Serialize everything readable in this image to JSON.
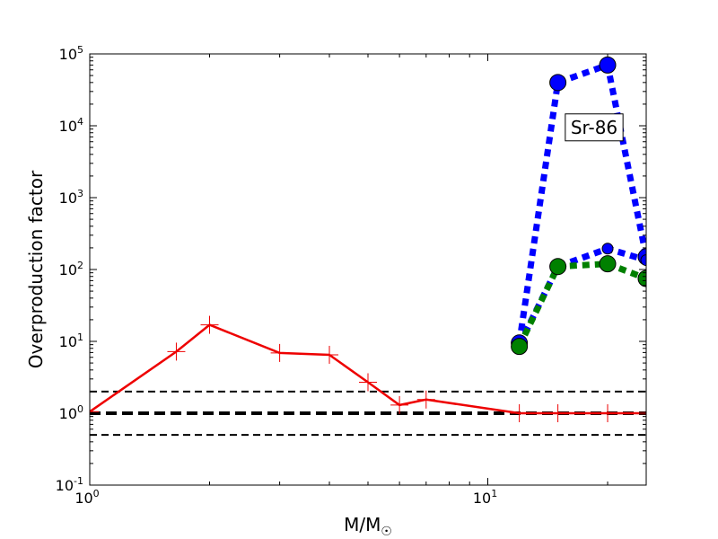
{
  "chart_data": {
    "type": "line",
    "xscale": "log",
    "yscale": "log",
    "xlim": [
      1,
      25
    ],
    "ylim": [
      0.1,
      100000
    ],
    "xlabel": "M/M☉",
    "ylabel": "Overproduction factor",
    "x_ticks": [
      {
        "value": 1,
        "base": "10",
        "exp": "0"
      },
      {
        "value": 10,
        "base": "10",
        "exp": "1"
      }
    ],
    "y_ticks": [
      {
        "value": 0.1,
        "base": "10",
        "exp": "-1"
      },
      {
        "value": 1,
        "base": "10",
        "exp": "0"
      },
      {
        "value": 10,
        "base": "10",
        "exp": "1"
      },
      {
        "value": 100,
        "base": "10",
        "exp": "2"
      },
      {
        "value": 1000,
        "base": "10",
        "exp": "3"
      },
      {
        "value": 10000,
        "base": "10",
        "exp": "4"
      },
      {
        "value": 100000,
        "base": "10",
        "exp": "5"
      }
    ],
    "reference_lines": [
      {
        "y": 2.0,
        "style": "dashed",
        "weight": "thin",
        "color": "#000000"
      },
      {
        "y": 1.0,
        "style": "dashed",
        "weight": "thick",
        "color": "#000000"
      },
      {
        "y": 0.5,
        "style": "dashed",
        "weight": "thin",
        "color": "#000000"
      }
    ],
    "series": [
      {
        "color": "#ee0000",
        "line": "solid",
        "marker": "plus",
        "points": [
          [
            1.0,
            1.05
          ],
          [
            1.65,
            7.2
          ],
          [
            2.0,
            17.0
          ],
          [
            3.0,
            6.9
          ],
          [
            4.0,
            6.5
          ],
          [
            5.0,
            2.7
          ],
          [
            6.0,
            1.3
          ],
          [
            7.0,
            1.55
          ],
          [
            12.0,
            1.0
          ],
          [
            15.0,
            1.0
          ],
          [
            20.0,
            1.0
          ],
          [
            25.0,
            1.0
          ]
        ]
      },
      {
        "color": "#0000ff",
        "line": "dotted",
        "marker": "circle-large",
        "points": [
          [
            12.0,
            9.5
          ],
          [
            15.0,
            40000
          ],
          [
            20.0,
            70000
          ],
          [
            25.0,
            150
          ]
        ]
      },
      {
        "color": "#0000ff",
        "line": "dotted",
        "marker": "circle-small",
        "points": [
          [
            12.0,
            9.0
          ],
          [
            15.0,
            110
          ],
          [
            20.0,
            195
          ],
          [
            25.0,
            135
          ]
        ]
      },
      {
        "color": "#008000",
        "line": "dotted",
        "marker": "circle-large",
        "points": [
          [
            12.0,
            8.5
          ],
          [
            15.0,
            110
          ],
          [
            20.0,
            120
          ],
          [
            25.0,
            75
          ]
        ]
      }
    ],
    "annotations": [
      {
        "text": "Sr-86",
        "x": 18.5,
        "y": 9500
      }
    ]
  }
}
